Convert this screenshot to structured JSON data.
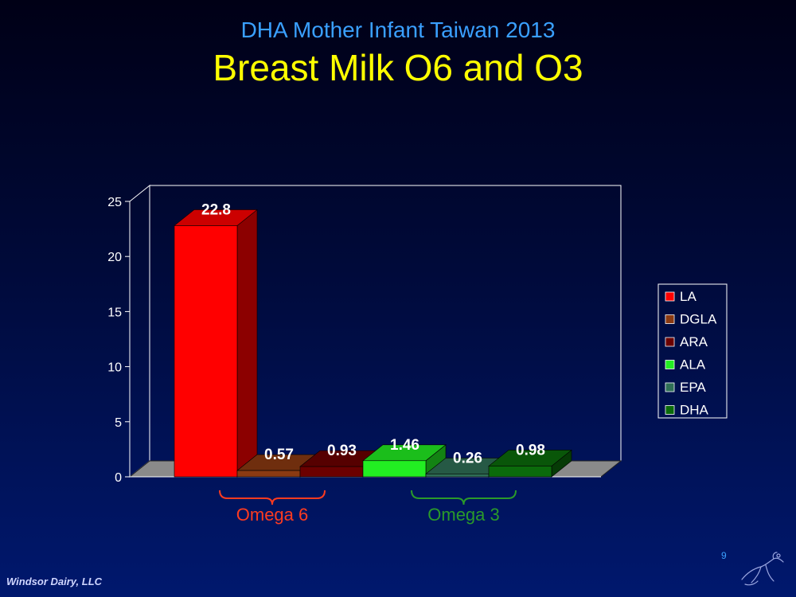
{
  "slide": {
    "subtitle": "DHA Mother Infant Taiwan 2013",
    "title": "Breast Milk O6 and O3",
    "footer_company": "Windsor Dairy, LLC",
    "page_number": "9"
  },
  "chart_data": {
    "type": "bar",
    "title": "",
    "xlabel": "",
    "ylabel": "",
    "ylim": [
      0,
      25
    ],
    "yticks": [
      "0",
      "5",
      "10",
      "15",
      "20",
      "25"
    ],
    "grid": false,
    "legend_position": "right",
    "categories": [
      "LA",
      "DGLA",
      "ARA",
      "ALA",
      "EPA",
      "DHA"
    ],
    "series": [
      {
        "name": "LA",
        "value": 22.8,
        "label": "22.8",
        "color": "#ff0000"
      },
      {
        "name": "DGLA",
        "value": 0.57,
        "label": "0.57",
        "color": "#8b3a12"
      },
      {
        "name": "ARA",
        "value": 0.93,
        "label": "0.93",
        "color": "#6b0000"
      },
      {
        "name": "ALA",
        "value": 1.46,
        "label": "1.46",
        "color": "#22ee22"
      },
      {
        "name": "EPA",
        "value": 0.26,
        "label": "0.26",
        "color": "#2f6f56"
      },
      {
        "name": "DHA",
        "value": 0.98,
        "label": "0.98",
        "color": "#0b6b0b"
      }
    ],
    "groups": [
      {
        "label": "Omega 6",
        "members": [
          "LA",
          "DGLA",
          "ARA"
        ],
        "color": "#ff3b1f"
      },
      {
        "label": "Omega 3",
        "members": [
          "ALA",
          "EPA",
          "DHA"
        ],
        "color": "#2a9a2a"
      }
    ]
  }
}
